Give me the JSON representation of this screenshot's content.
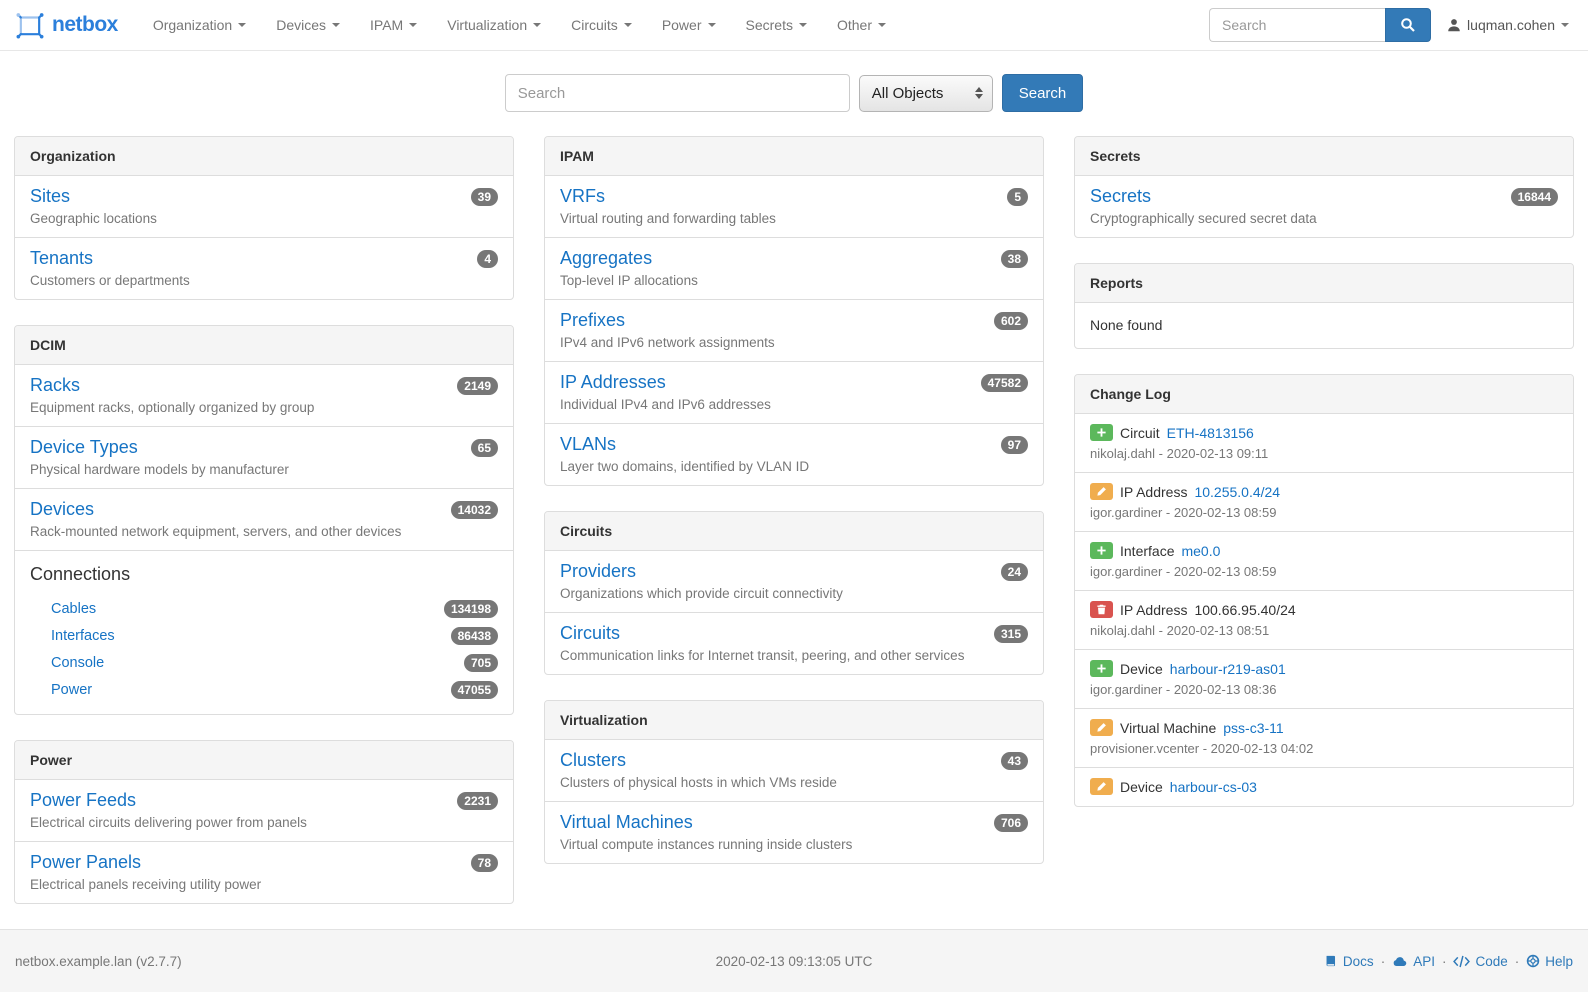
{
  "navbar": {
    "brand": "netbox",
    "menu": [
      {
        "label": "Organization"
      },
      {
        "label": "Devices"
      },
      {
        "label": "IPAM"
      },
      {
        "label": "Virtualization"
      },
      {
        "label": "Circuits"
      },
      {
        "label": "Power"
      },
      {
        "label": "Secrets"
      },
      {
        "label": "Other"
      }
    ],
    "search_placeholder": "Search",
    "username": "luqman.cohen"
  },
  "search_bar": {
    "placeholder": "Search",
    "scope_selected": "All Objects",
    "button_label": "Search"
  },
  "columns": {
    "left": [
      {
        "title": "Organization",
        "items": [
          {
            "name": "Sites",
            "desc": "Geographic locations",
            "count": "39"
          },
          {
            "name": "Tenants",
            "desc": "Customers or departments",
            "count": "4"
          }
        ]
      },
      {
        "title": "DCIM",
        "items": [
          {
            "name": "Racks",
            "desc": "Equipment racks, optionally organized by group",
            "count": "2149"
          },
          {
            "name": "Device Types",
            "desc": "Physical hardware models by manufacturer",
            "count": "65"
          },
          {
            "name": "Devices",
            "desc": "Rack-mounted network equipment, servers, and other devices",
            "count": "14032"
          }
        ],
        "connections": {
          "heading": "Connections",
          "links": [
            {
              "name": "Cables",
              "count": "134198"
            },
            {
              "name": "Interfaces",
              "count": "86438"
            },
            {
              "name": "Console",
              "count": "705"
            },
            {
              "name": "Power",
              "count": "47055"
            }
          ]
        }
      },
      {
        "title": "Power",
        "items": [
          {
            "name": "Power Feeds",
            "desc": "Electrical circuits delivering power from panels",
            "count": "2231"
          },
          {
            "name": "Power Panels",
            "desc": "Electrical panels receiving utility power",
            "count": "78"
          }
        ]
      }
    ],
    "middle": [
      {
        "title": "IPAM",
        "items": [
          {
            "name": "VRFs",
            "desc": "Virtual routing and forwarding tables",
            "count": "5"
          },
          {
            "name": "Aggregates",
            "desc": "Top-level IP allocations",
            "count": "38"
          },
          {
            "name": "Prefixes",
            "desc": "IPv4 and IPv6 network assignments",
            "count": "602"
          },
          {
            "name": "IP Addresses",
            "desc": "Individual IPv4 and IPv6 addresses",
            "count": "47582"
          },
          {
            "name": "VLANs",
            "desc": "Layer two domains, identified by VLAN ID",
            "count": "97"
          }
        ]
      },
      {
        "title": "Circuits",
        "items": [
          {
            "name": "Providers",
            "desc": "Organizations which provide circuit connectivity",
            "count": "24"
          },
          {
            "name": "Circuits",
            "desc": "Communication links for Internet transit, peering, and other services",
            "count": "315"
          }
        ]
      },
      {
        "title": "Virtualization",
        "items": [
          {
            "name": "Clusters",
            "desc": "Clusters of physical hosts in which VMs reside",
            "count": "43"
          },
          {
            "name": "Virtual Machines",
            "desc": "Virtual compute instances running inside clusters",
            "count": "706"
          }
        ]
      }
    ],
    "right": {
      "secrets_panel": {
        "title": "Secrets",
        "items": [
          {
            "name": "Secrets",
            "desc": "Cryptographically secured secret data",
            "count": "16844"
          }
        ]
      },
      "reports_panel": {
        "title": "Reports",
        "empty_text": "None found"
      },
      "changelog_panel": {
        "title": "Change Log",
        "entries": [
          {
            "action": "create",
            "type": "Circuit",
            "object": "ETH-4813156",
            "is_link": true,
            "meta": "nikolaj.dahl - 2020-02-13 09:11"
          },
          {
            "action": "update",
            "type": "IP Address",
            "object": "10.255.0.4/24",
            "is_link": true,
            "meta": "igor.gardiner - 2020-02-13 08:59"
          },
          {
            "action": "create",
            "type": "Interface",
            "object": "me0.0",
            "is_link": true,
            "meta": "igor.gardiner - 2020-02-13 08:59"
          },
          {
            "action": "delete",
            "type": "IP Address",
            "object": "100.66.95.40/24",
            "is_link": false,
            "meta": "nikolaj.dahl - 2020-02-13 08:51"
          },
          {
            "action": "create",
            "type": "Device",
            "object": "harbour-r219-as01",
            "is_link": true,
            "meta": "igor.gardiner - 2020-02-13 08:36"
          },
          {
            "action": "update",
            "type": "Virtual Machine",
            "object": "pss-c3-11",
            "is_link": true,
            "meta": "provisioner.vcenter - 2020-02-13 04:02"
          },
          {
            "action": "update",
            "type": "Device",
            "object": "harbour-cs-03",
            "is_link": true,
            "meta": ""
          }
        ]
      }
    }
  },
  "footer": {
    "left": "netbox.example.lan (v2.7.7)",
    "center": "2020-02-13 09:13:05 UTC",
    "separator": "·",
    "links": [
      {
        "label": "Docs",
        "icon": "book-icon"
      },
      {
        "label": "API",
        "icon": "cloud-icon"
      },
      {
        "label": "Code",
        "icon": "code-icon"
      },
      {
        "label": "Help",
        "icon": "help-icon"
      }
    ]
  },
  "colors": {
    "link_blue": "#1673c4",
    "button_blue": "#337ab7",
    "badge_gray": "#777777",
    "success_green": "#5cb85c",
    "warning_orange": "#f0ad4e",
    "danger_red": "#d9534f"
  }
}
